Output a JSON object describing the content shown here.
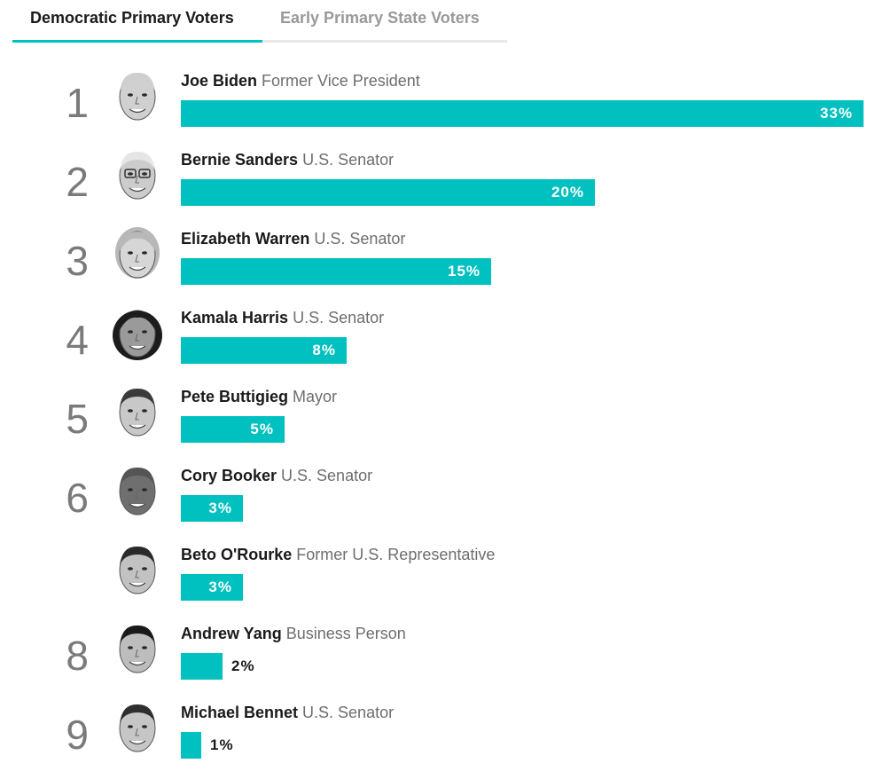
{
  "tabs": {
    "active": "Democratic Primary Voters",
    "inactive": "Early Primary State Voters"
  },
  "colors": {
    "bar": "#00c0c0",
    "accent": "#00c0c0",
    "rank": "#7a7a7a",
    "title": "#6e6e6e"
  },
  "chart_data": {
    "type": "bar",
    "orientation": "horizontal",
    "title": "",
    "xlabel": "",
    "ylabel": "",
    "xlim": [
      0,
      33
    ],
    "unit": "%",
    "categories": [
      "Joe Biden",
      "Bernie Sanders",
      "Elizabeth Warren",
      "Kamala Harris",
      "Pete Buttigieg",
      "Cory Booker",
      "Beto O'Rourke",
      "Andrew Yang",
      "Michael Bennet"
    ],
    "values": [
      33,
      20,
      15,
      8,
      5,
      3,
      3,
      2,
      1
    ],
    "candidates": [
      {
        "rank": "1",
        "name": "Joe Biden",
        "title": "Former Vice President",
        "value": 33,
        "label": "33%",
        "avatar": "joe-biden-photo"
      },
      {
        "rank": "2",
        "name": "Bernie Sanders",
        "title": "U.S. Senator",
        "value": 20,
        "label": "20%",
        "avatar": "bernie-sanders-photo"
      },
      {
        "rank": "3",
        "name": "Elizabeth Warren",
        "title": "U.S. Senator",
        "value": 15,
        "label": "15%",
        "avatar": "elizabeth-warren-photo"
      },
      {
        "rank": "4",
        "name": "Kamala Harris",
        "title": "U.S. Senator",
        "value": 8,
        "label": "8%",
        "avatar": "kamala-harris-photo"
      },
      {
        "rank": "5",
        "name": "Pete Buttigieg",
        "title": "Mayor",
        "value": 5,
        "label": "5%",
        "avatar": "pete-buttigieg-photo"
      },
      {
        "rank": "6",
        "name": "Cory Booker",
        "title": "U.S. Senator",
        "value": 3,
        "label": "3%",
        "avatar": "cory-booker-photo"
      },
      {
        "rank": "",
        "name": "Beto O'Rourke",
        "title": "Former U.S. Representative",
        "value": 3,
        "label": "3%",
        "avatar": "beto-orourke-photo"
      },
      {
        "rank": "8",
        "name": "Andrew Yang",
        "title": "Business Person",
        "value": 2,
        "label": "2%",
        "avatar": "andrew-yang-photo"
      },
      {
        "rank": "9",
        "name": "Michael Bennet",
        "title": "U.S. Senator",
        "value": 1,
        "label": "1%",
        "avatar": "michael-bennet-photo"
      }
    ]
  }
}
